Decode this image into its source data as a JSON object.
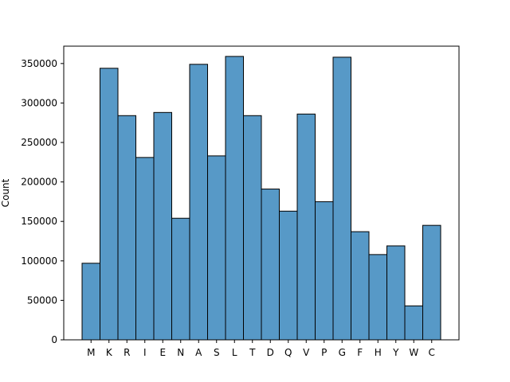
{
  "chart_data": {
    "type": "bar",
    "title": "",
    "xlabel": "",
    "ylabel": "Count",
    "categories": [
      "M",
      "K",
      "R",
      "I",
      "E",
      "N",
      "A",
      "S",
      "L",
      "T",
      "D",
      "Q",
      "V",
      "P",
      "G",
      "F",
      "H",
      "Y",
      "W",
      "C"
    ],
    "values": [
      97000,
      344000,
      284000,
      231000,
      288000,
      154000,
      349000,
      233000,
      359000,
      284000,
      191000,
      163000,
      286000,
      175000,
      358000,
      137000,
      108000,
      119000,
      43000,
      145000
    ],
    "ylim": [
      0,
      372000
    ],
    "yticks": [
      0,
      50000,
      100000,
      150000,
      200000,
      250000,
      300000,
      350000
    ],
    "ytick_labels": [
      "0",
      "50000",
      "100000",
      "150000",
      "200000",
      "250000",
      "300000",
      "350000"
    ],
    "grid": false,
    "legend": "none",
    "colors": {
      "bar_fill": "#5799c7",
      "bar_edge": "#000000",
      "axis": "#000000"
    }
  }
}
